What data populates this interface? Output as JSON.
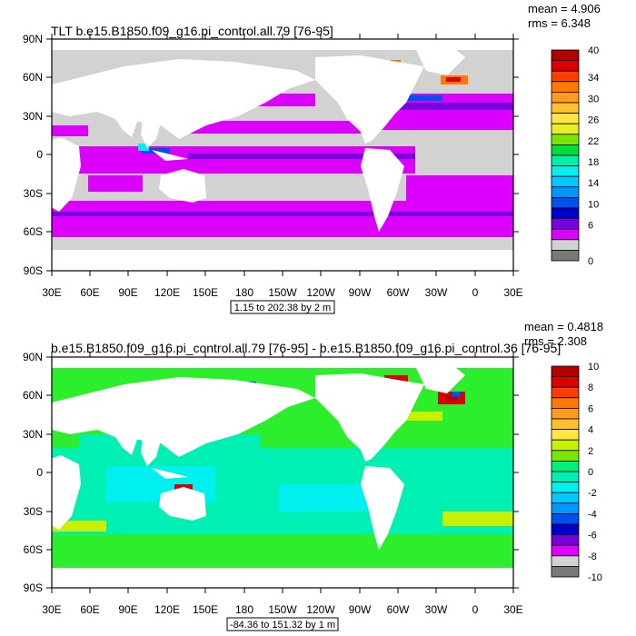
{
  "panels": [
    {
      "title": "TLT b.e15.B1850.f09_g16.pi_control.all.79 [76-95]",
      "mean_label": "mean = 4.906",
      "rms_label": "rms = 6.348",
      "lat_ticks": [
        "90N",
        "60N",
        "30N",
        "0",
        "30S",
        "60S",
        "90S"
      ],
      "lon_ticks": [
        "30E",
        "60E",
        "90E",
        "120E",
        "150E",
        "180",
        "150W",
        "120W",
        "90W",
        "60W",
        "30W",
        "0",
        "30E"
      ],
      "range_label": "1.15 to 202.38 by 2 m",
      "colorbar": {
        "labels": [
          "40",
          "34",
          "30",
          "26",
          "22",
          "18",
          "14",
          "10",
          "6",
          "0"
        ],
        "colors": [
          "#b40000",
          "#dc0000",
          "#ff3c00",
          "#ff7800",
          "#ff9c20",
          "#ffc030",
          "#ffe640",
          "#e6f020",
          "#78e600",
          "#00dc3c",
          "#00eeaa",
          "#00f0f0",
          "#00c8ff",
          "#0096ff",
          "#0050f0",
          "#0000c8",
          "#7800dc",
          "#dc00ff",
          "#d2d2d2",
          "#787878"
        ]
      }
    },
    {
      "title": "b.e15.B1850.f09_g16.pi_control.all.79 [76-95] - b.e15.B1850.f09_g16.pi_control.36 [76-95]",
      "mean_label": "mean = 0.4818",
      "rms_label": "rms = 2.308",
      "lat_ticks": [
        "90N",
        "60N",
        "30N",
        "0",
        "30S",
        "60S",
        "90S"
      ],
      "lon_ticks": [
        "30E",
        "60E",
        "90E",
        "120E",
        "150E",
        "180",
        "150W",
        "120W",
        "90W",
        "60W",
        "30W",
        "0",
        "30E"
      ],
      "range_label": "-84.36 to 151.32 by 1 m",
      "colorbar": {
        "labels": [
          "10",
          "8",
          "6",
          "4",
          "2",
          "0",
          "-2",
          "-4",
          "-6",
          "-8",
          "-10"
        ],
        "colors": [
          "#b40000",
          "#dc0000",
          "#ff3c00",
          "#ff7800",
          "#ff9c20",
          "#ffc030",
          "#ffe640",
          "#c8f000",
          "#78e600",
          "#00f07a",
          "#00f0b4",
          "#00f0f0",
          "#00c8ff",
          "#0096ff",
          "#0050f0",
          "#0000c8",
          "#7800dc",
          "#dc00ff",
          "#d2d2d2",
          "#787878"
        ]
      }
    }
  ],
  "palette": {
    "land": "#ffffff",
    "grey": "#d2d2d2",
    "magenta": "#dc00ff",
    "purple": "#7800dc",
    "cyan": "#00f0f0",
    "orange": "#ff7800",
    "red": "#dc0000",
    "dark_red": "#b40000",
    "green": "#2dee2d",
    "teal": "#00f0b4",
    "yellow_green": "#c8f000",
    "blue": "#0050f0"
  }
}
